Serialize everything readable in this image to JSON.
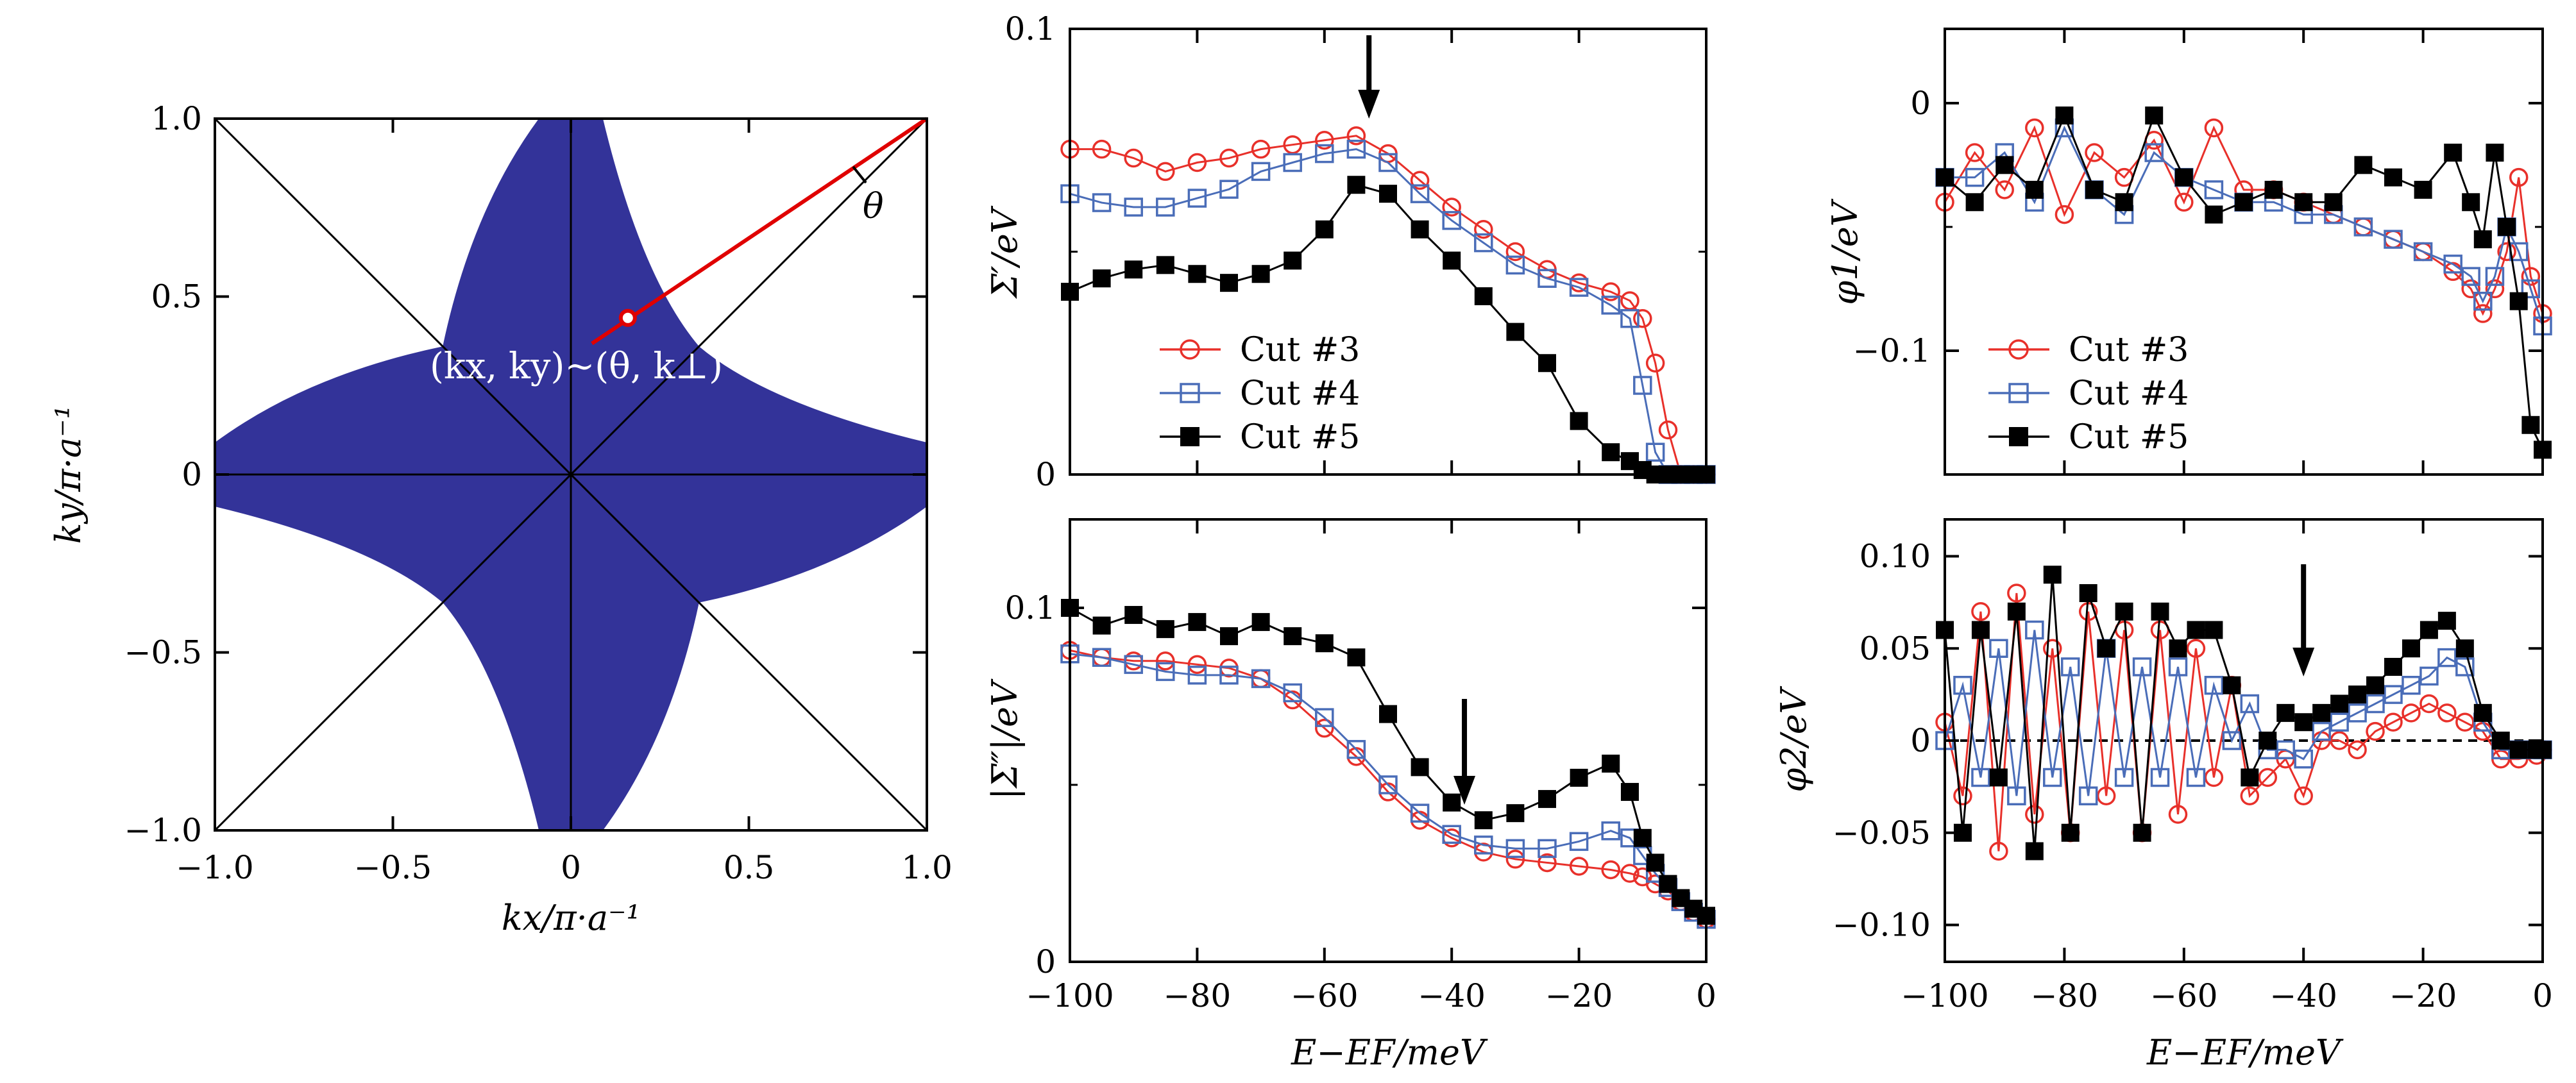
{
  "panels": {
    "fs": {
      "xlabel": "kx/π·a⁻¹",
      "ylabel": "ky/π·a⁻¹",
      "xticks": [
        "−1.0",
        "−0.5",
        "0",
        "0.5",
        "1.0"
      ],
      "yticks": [
        "1.0",
        "0.5",
        "0",
        "−0.5",
        "−1.0"
      ],
      "annotation": "(kx, ky)~(θ, k⊥)",
      "angle_label": "θ",
      "fill_color": "#333399",
      "cut_color": "#e00000"
    },
    "sigma1": {
      "ylabel": "Σ′/eV",
      "yticks": [
        "0.1",
        "0"
      ],
      "legend": [
        "Cut #3",
        "Cut #4",
        "Cut #5"
      ]
    },
    "phi1": {
      "ylabel": "φ1/eV",
      "yticks": [
        "0",
        "−0.1"
      ],
      "legend": [
        "Cut #3",
        "Cut #4",
        "Cut #5"
      ]
    },
    "sigma2": {
      "ylabel": "|Σ″|/eV",
      "yticks": [
        "0.1",
        "0"
      ],
      "xticks": [
        "−100",
        "−80",
        "−60",
        "−40",
        "−20",
        "0"
      ],
      "xlabel": "E−EF/meV"
    },
    "phi2": {
      "ylabel": "φ2/eV",
      "yticks": [
        "0.10",
        "0.05",
        "0",
        "−0.05",
        "−0.10"
      ],
      "xticks": [
        "−100",
        "−80",
        "−60",
        "−40",
        "−20",
        "0"
      ],
      "xlabel": "E−EF/meV"
    }
  },
  "series_colors": {
    "cut3": "#e8302a",
    "cut4": "#4a6db8",
    "cut5": "#000000"
  },
  "chart_data": [
    {
      "type": "area",
      "panel": "fs",
      "title": "",
      "xlabel": "kx/π·a⁻¹",
      "ylabel": "ky/π·a⁻¹",
      "xlim": [
        -1,
        1
      ],
      "ylim": [
        -1,
        1
      ],
      "description_values": {
        "neck_halfwidth_at_edge": 0.09,
        "diagonal_extent": 0.36,
        "cut_point": [
          0.16,
          0.44
        ]
      }
    },
    {
      "type": "line",
      "panel": "sigma1",
      "ylabel": "Σ′/eV",
      "xlim": [
        -100,
        0
      ],
      "ylim": [
        0,
        0.1
      ],
      "arrow_x": -53,
      "x": [
        -100,
        -95,
        -90,
        -85,
        -80,
        -75,
        -70,
        -65,
        -60,
        -55,
        -50,
        -45,
        -40,
        -35,
        -30,
        -25,
        -20,
        -15,
        -12,
        -10,
        -8,
        -6,
        -4,
        -2,
        0
      ],
      "series": [
        {
          "name": "Cut #3",
          "values": [
            0.073,
            0.073,
            0.071,
            0.068,
            0.07,
            0.071,
            0.073,
            0.074,
            0.075,
            0.076,
            0.072,
            0.066,
            0.06,
            0.055,
            0.05,
            0.046,
            0.043,
            0.041,
            0.039,
            0.035,
            0.025,
            0.01,
            0.0,
            0.0,
            0.0
          ]
        },
        {
          "name": "Cut #4",
          "values": [
            0.063,
            0.061,
            0.06,
            0.06,
            0.062,
            0.064,
            0.068,
            0.07,
            0.072,
            0.073,
            0.07,
            0.063,
            0.057,
            0.052,
            0.047,
            0.044,
            0.042,
            0.038,
            0.035,
            0.02,
            0.005,
            0.0,
            0.0,
            0.0,
            0.0
          ]
        },
        {
          "name": "Cut #5",
          "values": [
            0.041,
            0.044,
            0.046,
            0.047,
            0.045,
            0.043,
            0.045,
            0.048,
            0.055,
            0.065,
            0.063,
            0.055,
            0.048,
            0.04,
            0.032,
            0.025,
            0.012,
            0.005,
            0.003,
            0.001,
            0.0,
            0.0,
            0.0,
            0.0,
            0.0
          ]
        }
      ]
    },
    {
      "type": "line",
      "panel": "phi1",
      "ylabel": "φ1/eV",
      "xlim": [
        -100,
        0
      ],
      "ylim": [
        -0.15,
        0.03
      ],
      "x": [
        -100,
        -95,
        -90,
        -85,
        -80,
        -75,
        -70,
        -65,
        -60,
        -55,
        -50,
        -45,
        -40,
        -35,
        -30,
        -25,
        -20,
        -15,
        -12,
        -10,
        -8,
        -6,
        -4,
        -2,
        0
      ],
      "series": [
        {
          "name": "Cut #3",
          "values": [
            -0.04,
            -0.02,
            -0.035,
            -0.01,
            -0.045,
            -0.02,
            -0.03,
            -0.015,
            -0.04,
            -0.01,
            -0.035,
            -0.035,
            -0.04,
            -0.045,
            -0.05,
            -0.055,
            -0.06,
            -0.068,
            -0.075,
            -0.085,
            -0.075,
            -0.06,
            -0.03,
            -0.07,
            -0.085
          ]
        },
        {
          "name": "Cut #4",
          "values": [
            -0.03,
            -0.03,
            -0.02,
            -0.04,
            -0.01,
            -0.035,
            -0.045,
            -0.02,
            -0.03,
            -0.035,
            -0.04,
            -0.04,
            -0.045,
            -0.045,
            -0.05,
            -0.055,
            -0.06,
            -0.065,
            -0.07,
            -0.08,
            -0.07,
            -0.05,
            -0.06,
            -0.075,
            -0.09
          ]
        },
        {
          "name": "Cut #5",
          "values": [
            -0.03,
            -0.04,
            -0.025,
            -0.035,
            -0.005,
            -0.035,
            -0.04,
            -0.005,
            -0.03,
            -0.045,
            -0.04,
            -0.035,
            -0.04,
            -0.04,
            -0.025,
            -0.03,
            -0.035,
            -0.02,
            -0.04,
            -0.055,
            -0.02,
            -0.05,
            -0.08,
            -0.13,
            -0.14
          ]
        }
      ]
    },
    {
      "type": "line",
      "panel": "sigma2",
      "ylabel": "|Σ″|/eV",
      "xlabel": "E−EF/meV",
      "xlim": [
        -100,
        0
      ],
      "ylim": [
        0,
        0.125
      ],
      "arrow_x": -38,
      "x": [
        -100,
        -95,
        -90,
        -85,
        -80,
        -75,
        -70,
        -65,
        -60,
        -55,
        -50,
        -45,
        -40,
        -35,
        -30,
        -25,
        -20,
        -15,
        -12,
        -10,
        -8,
        -6,
        -4,
        -2,
        0
      ],
      "series": [
        {
          "name": "Cut #3",
          "values": [
            0.088,
            0.086,
            0.085,
            0.085,
            0.084,
            0.083,
            0.08,
            0.074,
            0.066,
            0.058,
            0.048,
            0.04,
            0.035,
            0.031,
            0.029,
            0.028,
            0.027,
            0.026,
            0.025,
            0.024,
            0.022,
            0.02,
            0.017,
            0.014,
            0.012
          ]
        },
        {
          "name": "Cut #4",
          "values": [
            0.087,
            0.086,
            0.084,
            0.082,
            0.081,
            0.081,
            0.08,
            0.076,
            0.069,
            0.06,
            0.05,
            0.042,
            0.036,
            0.033,
            0.032,
            0.032,
            0.034,
            0.037,
            0.035,
            0.03,
            0.025,
            0.021,
            0.017,
            0.014,
            0.012
          ]
        },
        {
          "name": "Cut #5",
          "values": [
            0.1,
            0.095,
            0.098,
            0.094,
            0.096,
            0.092,
            0.096,
            0.092,
            0.09,
            0.086,
            0.07,
            0.055,
            0.045,
            0.04,
            0.042,
            0.046,
            0.052,
            0.056,
            0.048,
            0.035,
            0.028,
            0.022,
            0.018,
            0.015,
            0.013
          ]
        }
      ]
    },
    {
      "type": "line",
      "panel": "phi2",
      "ylabel": "φ2/eV",
      "xlabel": "E−EF/meV",
      "xlim": [
        -100,
        0
      ],
      "ylim": [
        -0.12,
        0.12
      ],
      "arrow_x": -40,
      "zero_line": true,
      "x": [
        -100,
        -97,
        -94,
        -91,
        -88,
        -85,
        -82,
        -79,
        -76,
        -73,
        -70,
        -67,
        -64,
        -61,
        -58,
        -55,
        -52,
        -49,
        -46,
        -43,
        -40,
        -37,
        -34,
        -31,
        -28,
        -25,
        -22,
        -19,
        -16,
        -13,
        -10,
        -7,
        -4,
        -1,
        0
      ],
      "series": [
        {
          "name": "Cut #3",
          "values": [
            0.01,
            -0.03,
            0.07,
            -0.06,
            0.08,
            -0.04,
            0.05,
            -0.05,
            0.07,
            -0.03,
            0.06,
            -0.05,
            0.06,
            -0.04,
            0.05,
            -0.02,
            0.03,
            -0.03,
            -0.02,
            -0.01,
            -0.03,
            0.0,
            0.0,
            -0.005,
            0.005,
            0.01,
            0.015,
            0.02,
            0.015,
            0.01,
            0.005,
            -0.01,
            -0.01,
            -0.008,
            -0.005
          ]
        },
        {
          "name": "Cut #4",
          "values": [
            0.0,
            0.03,
            -0.02,
            0.05,
            -0.03,
            0.06,
            -0.02,
            0.04,
            -0.03,
            0.05,
            -0.02,
            0.04,
            -0.02,
            0.04,
            -0.02,
            0.03,
            0.0,
            0.02,
            -0.005,
            -0.005,
            -0.01,
            0.005,
            0.01,
            0.015,
            0.02,
            0.025,
            0.03,
            0.035,
            0.045,
            0.04,
            0.01,
            -0.005,
            -0.005,
            -0.005,
            -0.005
          ]
        },
        {
          "name": "Cut #5",
          "values": [
            0.06,
            -0.05,
            0.06,
            -0.02,
            0.07,
            -0.06,
            0.09,
            -0.05,
            0.08,
            0.05,
            0.07,
            -0.05,
            0.07,
            0.05,
            0.06,
            0.06,
            0.03,
            -0.02,
            0.0,
            0.015,
            0.01,
            0.015,
            0.02,
            0.025,
            0.03,
            0.04,
            0.05,
            0.06,
            0.065,
            0.05,
            0.015,
            0.0,
            -0.005,
            -0.005,
            -0.005
          ]
        }
      ]
    }
  ]
}
